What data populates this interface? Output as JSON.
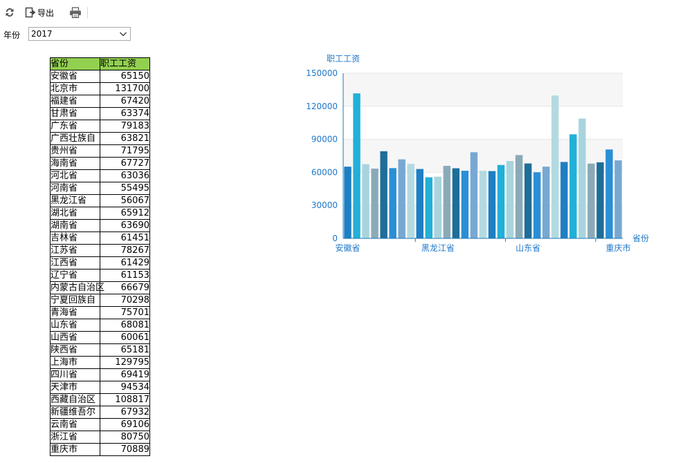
{
  "toolbar": {
    "refresh_icon": "refresh-icon",
    "export_icon": "export-icon",
    "export_label": "导出",
    "print_icon": "printer-icon"
  },
  "filter": {
    "label": "年份",
    "selected": "2017"
  },
  "table": {
    "headers": [
      "省份",
      "职工工资"
    ],
    "header_bg": "#92d050",
    "rows": [
      [
        "安徽省",
        "65150"
      ],
      [
        "北京市",
        "131700"
      ],
      [
        "福建省",
        "67420"
      ],
      [
        "甘肃省",
        "63374"
      ],
      [
        "广东省",
        "79183"
      ],
      [
        "广西壮族自",
        "63821"
      ],
      [
        "贵州省",
        "71795"
      ],
      [
        "海南省",
        "67727"
      ],
      [
        "河北省",
        "63036"
      ],
      [
        "河南省",
        "55495"
      ],
      [
        "黑龙江省",
        "56067"
      ],
      [
        "湖北省",
        "65912"
      ],
      [
        "湖南省",
        "63690"
      ],
      [
        "吉林省",
        "61451"
      ],
      [
        "江苏省",
        "78267"
      ],
      [
        "江西省",
        "61429"
      ],
      [
        "辽宁省",
        "61153"
      ],
      [
        "内蒙古自治区",
        "66679"
      ],
      [
        "宁夏回族自",
        "70298"
      ],
      [
        "青海省",
        "75701"
      ],
      [
        "山东省",
        "68081"
      ],
      [
        "山西省",
        "60061"
      ],
      [
        "陕西省",
        "65181"
      ],
      [
        "上海市",
        "129795"
      ],
      [
        "四川省",
        "69419"
      ],
      [
        "天津市",
        "94534"
      ],
      [
        "西藏自治区",
        "108817"
      ],
      [
        "新疆维吾尔",
        "67932"
      ],
      [
        "云南省",
        "69106"
      ],
      [
        "浙江省",
        "80750"
      ],
      [
        "重庆市",
        "70889"
      ]
    ]
  },
  "chart_data": {
    "type": "bar",
    "ylabel": "职工工资",
    "xlabel": "省份",
    "ylim": [
      0,
      150000
    ],
    "yticks": [
      0,
      30000,
      60000,
      90000,
      120000,
      150000
    ],
    "x_tick_labels": [
      "安徽省",
      "黑龙江省",
      "山东省",
      "重庆市"
    ],
    "categories": [
      "安徽省",
      "北京市",
      "福建省",
      "甘肃省",
      "广东省",
      "广西壮族自",
      "贵州省",
      "海南省",
      "河北省",
      "河南省",
      "黑龙江省",
      "湖北省",
      "湖南省",
      "吉林省",
      "江苏省",
      "江西省",
      "辽宁省",
      "内蒙古自治区",
      "宁夏回族自",
      "青海省",
      "山东省",
      "山西省",
      "陕西省",
      "上海市",
      "四川省",
      "天津市",
      "西藏自治区",
      "新疆维吾尔",
      "云南省",
      "浙江省",
      "重庆市"
    ],
    "values": [
      65150,
      131700,
      67420,
      63374,
      79183,
      63821,
      71795,
      67727,
      63036,
      55495,
      56067,
      65912,
      63690,
      61451,
      78267,
      61429,
      61153,
      66679,
      70298,
      75701,
      68081,
      60061,
      65181,
      129795,
      69419,
      94534,
      108817,
      67932,
      69106,
      80750,
      70889
    ],
    "palette": [
      "#1e7fc4",
      "#21b0d8",
      "#a8d4de",
      "#8aaab8",
      "#1e6e99",
      "#2a8fd6",
      "#78a8d2",
      "#b3dae1"
    ],
    "axis_color": "#1f78b4",
    "label_color": "#1d77c9",
    "grid": true
  }
}
